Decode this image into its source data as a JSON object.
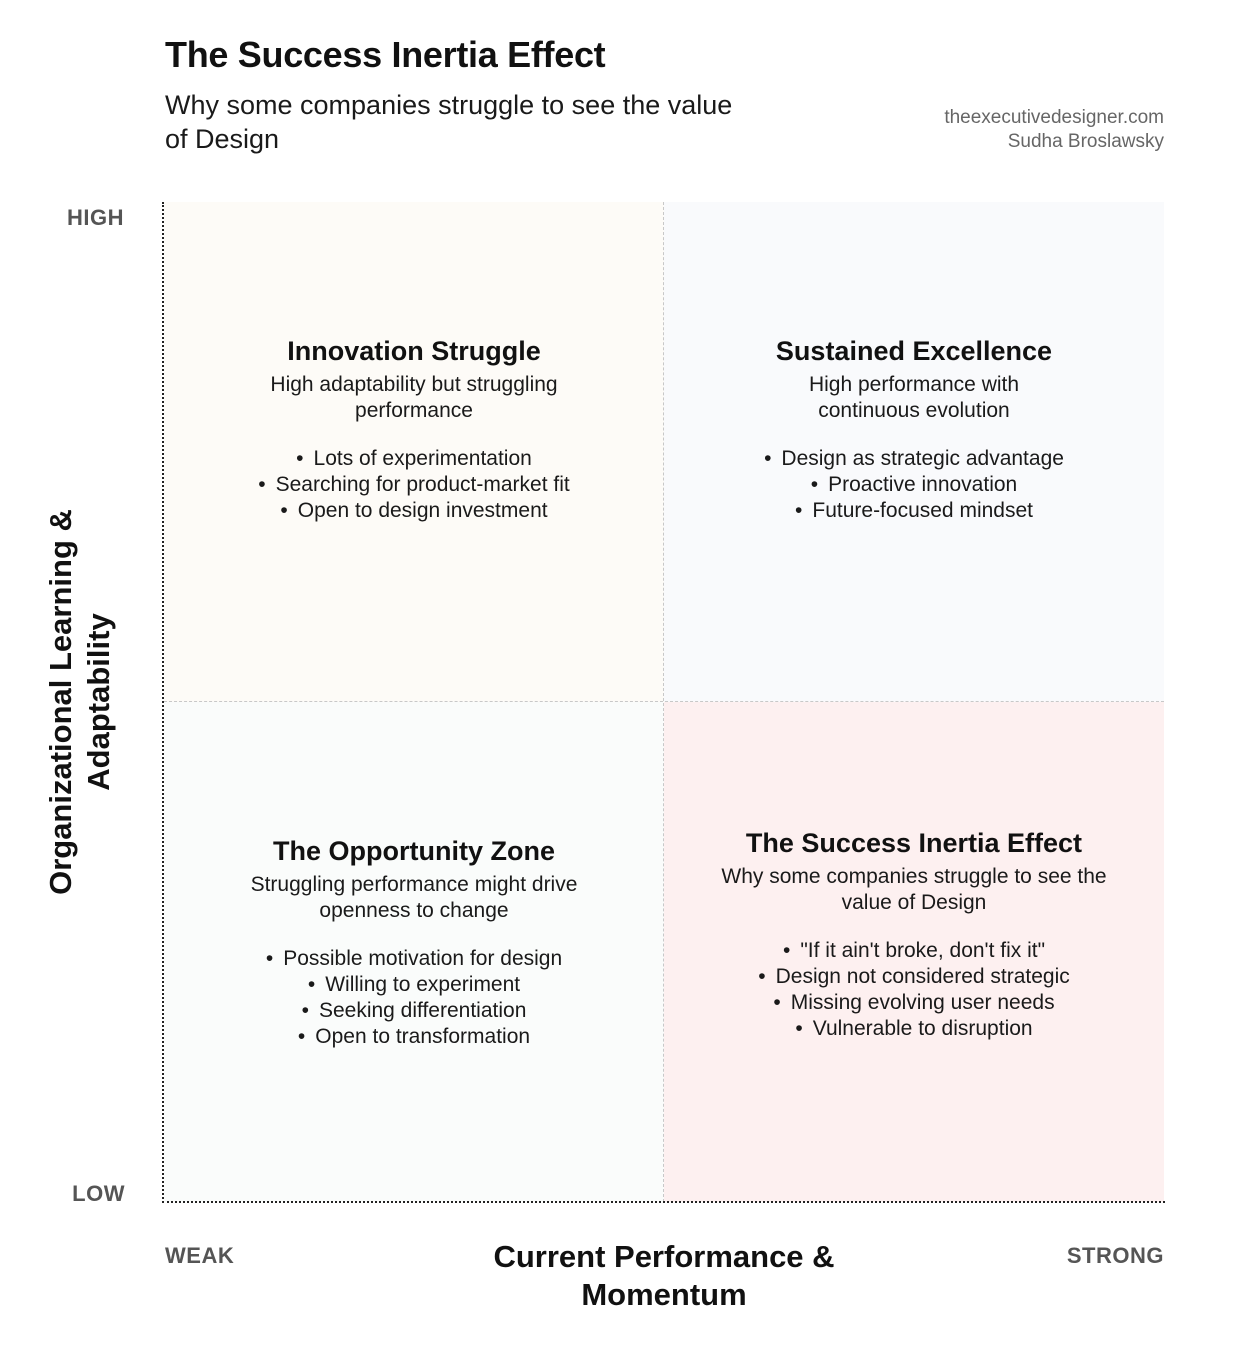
{
  "header": {
    "title": "The Success Inertia Effect",
    "subtitle": "Why some companies struggle to see the value of Design",
    "credit_site": "theexecutivedesigner.com",
    "credit_author": "Sudha Broslawsky"
  },
  "axes": {
    "y_label": "Organizational Learning & Adaptability",
    "x_label": "Current Performance & Momentum",
    "y_high": "HIGH",
    "y_low": "LOW",
    "x_low": "WEAK",
    "x_high": "STRONG"
  },
  "quadrants": {
    "top_left": {
      "title": "Innovation Struggle",
      "description": "High adaptability but struggling performance",
      "bullets": [
        "Lots of experimentation",
        "Searching for product-market fit",
        "Open to design investment"
      ],
      "background": "#fdfbf7"
    },
    "top_right": {
      "title": "Sustained Excellence",
      "description": "High performance with continuous evolution",
      "bullets": [
        "Design as strategic advantage",
        "Proactive innovation",
        "Future-focused mindset"
      ],
      "background": "#f9fafc"
    },
    "bottom_left": {
      "title": "The Opportunity Zone",
      "description": "Struggling performance might drive openness to change",
      "bullets": [
        "Possible motivation for design",
        "Willing to experiment",
        "Seeking differentiation",
        "Open to transformation"
      ],
      "background": "#fafcfb"
    },
    "bottom_right": {
      "title": "The Success Inertia Effect",
      "description": "Why some companies struggle to see the value of Design",
      "bullets": [
        "\"If it ain't broke, don't fix it\"",
        "Design not considered strategic",
        "Missing evolving user needs",
        "Vulnerable to disruption"
      ],
      "background": "#fdf0f0"
    }
  }
}
